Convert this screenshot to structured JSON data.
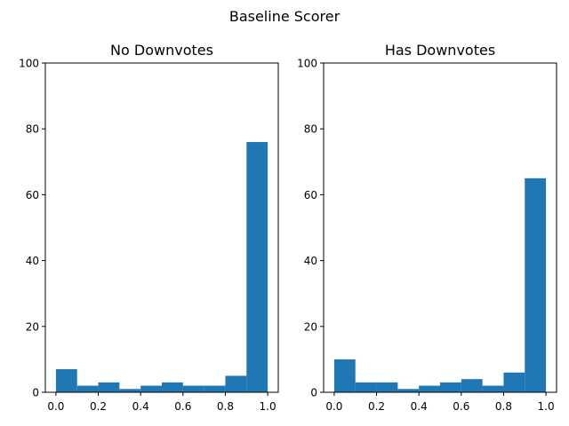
{
  "figure": {
    "suptitle": "Baseline Scorer"
  },
  "colors": {
    "bar": "#1f77b4",
    "axis": "#000000",
    "background": "#ffffff"
  },
  "chart_data": [
    {
      "type": "bar",
      "subtype": "histogram",
      "title": "No Downvotes",
      "xlabel": "",
      "ylabel": "",
      "bin_edges": [
        0.0,
        0.1,
        0.2,
        0.3,
        0.4,
        0.5,
        0.6,
        0.7,
        0.8,
        0.9,
        1.0
      ],
      "values": [
        7,
        2,
        3,
        1,
        2,
        3,
        2,
        2,
        5,
        76
      ],
      "xlim": [
        -0.05,
        1.05
      ],
      "ylim": [
        0,
        100
      ],
      "xticks": [
        "0.0",
        "0.2",
        "0.4",
        "0.6",
        "0.8",
        "1.0"
      ],
      "xtick_values": [
        0.0,
        0.2,
        0.4,
        0.6,
        0.8,
        1.0
      ],
      "yticks": [
        "0",
        "20",
        "40",
        "60",
        "80",
        "100"
      ],
      "ytick_values": [
        0,
        20,
        40,
        60,
        80,
        100
      ],
      "grid": false
    },
    {
      "type": "bar",
      "subtype": "histogram",
      "title": "Has Downvotes",
      "xlabel": "",
      "ylabel": "",
      "bin_edges": [
        0.0,
        0.1,
        0.2,
        0.3,
        0.4,
        0.5,
        0.6,
        0.7,
        0.8,
        0.9,
        1.0
      ],
      "values": [
        10,
        3,
        3,
        1,
        2,
        3,
        4,
        2,
        6,
        65
      ],
      "xlim": [
        -0.05,
        1.05
      ],
      "ylim": [
        0,
        100
      ],
      "xticks": [
        "0.0",
        "0.2",
        "0.4",
        "0.6",
        "0.8",
        "1.0"
      ],
      "xtick_values": [
        0.0,
        0.2,
        0.4,
        0.6,
        0.8,
        1.0
      ],
      "yticks": [
        "0",
        "20",
        "40",
        "60",
        "80",
        "100"
      ],
      "ytick_values": [
        0,
        20,
        40,
        60,
        80,
        100
      ],
      "grid": false
    }
  ]
}
